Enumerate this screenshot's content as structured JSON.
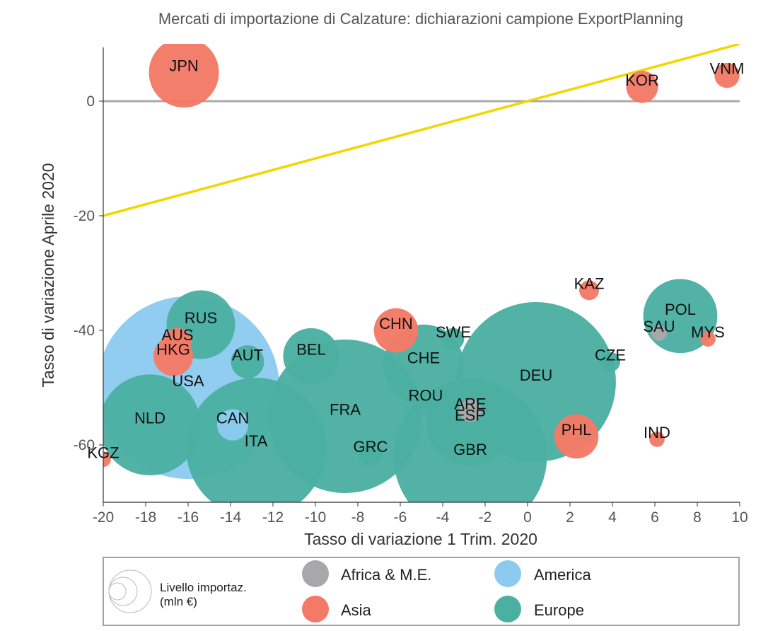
{
  "chart_data": {
    "type": "scatter",
    "title": "Mercati di importazione di Calzature: dichiarazioni campione ExportPlanning",
    "xlabel": "Tasso di variazione 1 Trim. 2020",
    "ylabel": "Tasso di variazione Aprile 2020",
    "xlim": [
      -20,
      10
    ],
    "ylim": [
      -70,
      10
    ],
    "x_ticks": [
      -20,
      -18,
      -16,
      -14,
      -12,
      -10,
      -8,
      -6,
      -4,
      -2,
      0,
      2,
      4,
      6,
      8,
      10
    ],
    "y_ticks": [
      0,
      -20,
      -40,
      -60
    ],
    "grid": false,
    "reference_lines": [
      {
        "kind": "horizontal",
        "y": 0,
        "color": "#aaaaaa"
      },
      {
        "kind": "line",
        "from": [
          -20,
          -20
        ],
        "to": [
          10,
          10
        ],
        "color": "#f2d600"
      }
    ],
    "legend": {
      "placement": "bottom",
      "size_title_line1": "Livello importaz.",
      "size_title_line2": "(mln €)",
      "groups": [
        {
          "name": "Africa & M.E.",
          "color": "#a8a8ab"
        },
        {
          "name": "America",
          "color": "#8ccbef"
        },
        {
          "name": "Asia",
          "color": "#f47a67"
        },
        {
          "name": "Europe",
          "color": "#4bb0a2"
        }
      ]
    },
    "points": [
      {
        "label": "JPN",
        "x": -16.2,
        "y": 5,
        "size": 1250,
        "group": "Asia"
      },
      {
        "label": "KOR",
        "x": 5.4,
        "y": 2.5,
        "size": 260,
        "group": "Asia"
      },
      {
        "label": "VNM",
        "x": 9.4,
        "y": 4.5,
        "size": 160,
        "group": "Asia"
      },
      {
        "label": "KAZ",
        "x": 2.9,
        "y": -33,
        "size": 100,
        "group": "Asia"
      },
      {
        "label": "POL",
        "x": 7.2,
        "y": -37.5,
        "size": 1400,
        "group": "Europe"
      },
      {
        "label": "SAU",
        "x": 6.2,
        "y": -40.5,
        "size": 60,
        "group": "Africa & M.E."
      },
      {
        "label": "MYS",
        "x": 8.5,
        "y": -41.5,
        "size": 60,
        "group": "Asia"
      },
      {
        "label": "CZE",
        "x": 3.9,
        "y": -45.5,
        "size": 100,
        "group": "Europe"
      },
      {
        "label": "CHN",
        "x": -6.2,
        "y": -40,
        "size": 500,
        "group": "Asia"
      },
      {
        "label": "SWE",
        "x": -3.5,
        "y": -41.5,
        "size": 120,
        "group": "Europe"
      },
      {
        "label": "CHE",
        "x": -4.9,
        "y": -46,
        "size": 1650,
        "group": "Europe"
      },
      {
        "label": "DEU",
        "x": 0.4,
        "y": -49,
        "size": 6500,
        "group": "Europe"
      },
      {
        "label": "RUS",
        "x": -15.4,
        "y": -39,
        "size": 1200,
        "group": "Europe"
      },
      {
        "label": "AUS",
        "x": -16.5,
        "y": -42,
        "size": 200,
        "group": "Asia"
      },
      {
        "label": "HKG",
        "x": -16.7,
        "y": -44.5,
        "size": 400,
        "group": "Asia"
      },
      {
        "label": "AUT",
        "x": -13.2,
        "y": -45.5,
        "size": 280,
        "group": "Europe"
      },
      {
        "label": "BEL",
        "x": -10.2,
        "y": -44.5,
        "size": 800,
        "group": "Europe"
      },
      {
        "label": "USA",
        "x": -16,
        "y": -50,
        "size": 8500,
        "group": "America"
      },
      {
        "label": "ROU",
        "x": -4.8,
        "y": -52.5,
        "size": 100,
        "group": "Europe"
      },
      {
        "label": "ARE",
        "x": -2.7,
        "y": -54,
        "size": 130,
        "group": "Africa & M.E."
      },
      {
        "label": "ESP",
        "x": -2.7,
        "y": -56,
        "size": 1950,
        "group": "Europe"
      },
      {
        "label": "CAN",
        "x": -13.9,
        "y": -56.5,
        "size": 250,
        "group": "America"
      },
      {
        "label": "NLD",
        "x": -17.8,
        "y": -56.5,
        "size": 2600,
        "group": "Europe"
      },
      {
        "label": "FRA",
        "x": -8.6,
        "y": -55,
        "size": 6000,
        "group": "Europe"
      },
      {
        "label": "ITA",
        "x": -12.8,
        "y": -60.5,
        "size": 5000,
        "group": "Europe"
      },
      {
        "label": "GRC",
        "x": -7.4,
        "y": -61.5,
        "size": 150,
        "group": "Europe"
      },
      {
        "label": "GBR",
        "x": -2.7,
        "y": -62,
        "size": 6000,
        "group": "Europe"
      },
      {
        "label": "PHL",
        "x": 2.3,
        "y": -58.5,
        "size": 500,
        "group": "Asia"
      },
      {
        "label": "IND",
        "x": 6.1,
        "y": -59,
        "size": 60,
        "group": "Asia"
      },
      {
        "label": "KGZ",
        "x": -20,
        "y": -62.5,
        "size": 60,
        "group": "Asia"
      }
    ]
  }
}
